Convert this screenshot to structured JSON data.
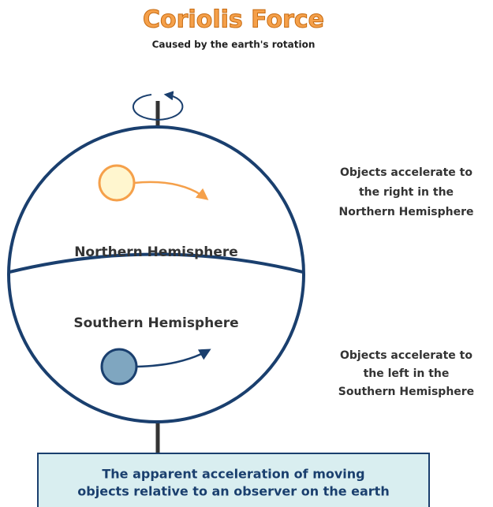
{
  "header": {
    "title": "Coriolis Force",
    "subtitle": "Caused by the earth's rotation"
  },
  "globe": {
    "northern_label": "Northern Hemisphere",
    "southern_label": "Southern Hemisphere"
  },
  "notes": {
    "northern": [
      "Objects accelerate to",
      "the right in the",
      "Northern Hemisphere"
    ],
    "southern": [
      "Objects accelerate to",
      "the left in the",
      "Southern Hemisphere"
    ]
  },
  "caption": [
    "The apparent acceleration of moving",
    "objects relative to an observer on the earth"
  ]
}
